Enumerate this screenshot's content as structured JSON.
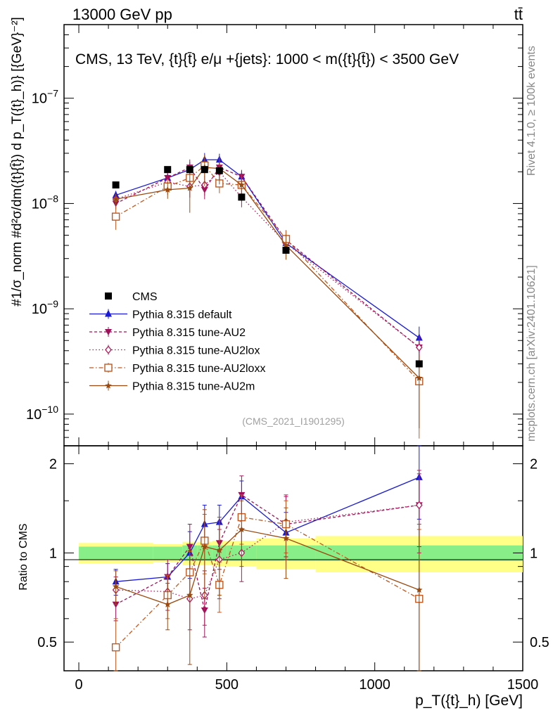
{
  "header": {
    "left": "13000 GeV pp",
    "right": "tt̄"
  },
  "side_labels": {
    "rivet": "Rivet 4.1.0, ≥ 100k events",
    "mcplots": "mcplots.cern.ch [arXiv:2401.10621]"
  },
  "chart_data": {
    "type": "scatter",
    "title": "CMS, 13 TeV, {t}{t̄} e/μ +{jets}: 1000 < m({t}{t̄}) < 3500 GeV",
    "analysis_tag": "(CMS_2021_I1901295)",
    "xlabel": "p_T({t}_h) [GeV]",
    "ylabel": "#1/σ_norm #d²σ/dm({t}{t̄}) d p_T({t}_h)} [{GeV}⁻²]",
    "ratio_ylabel": "Ratio to CMS",
    "xlim": [
      -50,
      1500
    ],
    "ylim": [
      5e-11,
      5e-07
    ],
    "yscale": "log",
    "ratio_ylim": [
      0.4,
      2.3
    ],
    "x_ticks": [
      0,
      500,
      1000,
      1500
    ],
    "y_ticks": [
      {
        "value": 1e-10,
        "mantissa": "10",
        "exp": "−10"
      },
      {
        "value": 1e-09,
        "mantissa": "10",
        "exp": "−9"
      },
      {
        "value": 1e-08,
        "mantissa": "10",
        "exp": "−8"
      },
      {
        "value": 1e-07,
        "mantissa": "10",
        "exp": "−7"
      }
    ],
    "ratio_ticks": [
      {
        "value": 0.5,
        "label": "0.5"
      },
      {
        "value": 1,
        "label": "1"
      },
      {
        "value": 2,
        "label": "2"
      }
    ],
    "bins": [
      0,
      250,
      350,
      400,
      450,
      500,
      600,
      800,
      1500
    ],
    "x": [
      125,
      300,
      375,
      425,
      475,
      550,
      700,
      1150
    ],
    "data": {
      "name": "CMS",
      "values": [
        1.5e-08,
        2.1e-08,
        2.1e-08,
        2.1e-08,
        2.05e-08,
        1.15e-08,
        3.6e-09,
        3e-10
      ],
      "ratio_band_inner": [
        0.05,
        0.05,
        0.06,
        0.06,
        0.06,
        0.06,
        0.06,
        0.06
      ],
      "ratio_band_outer": [
        0.08,
        0.07,
        0.09,
        0.09,
        0.1,
        0.1,
        0.12,
        0.14
      ]
    },
    "series": [
      {
        "name": "Pythia 8.315 default",
        "color": "#1a1ad6",
        "marker": "triangle-up",
        "dash": "",
        "values": [
          1.2e-08,
          1.75e-08,
          2.1e-08,
          2.6e-08,
          2.6e-08,
          1.8e-08,
          4.2e-09,
          5.3e-10
        ],
        "ratio": [
          0.8,
          0.83,
          1.0,
          1.25,
          1.27,
          1.55,
          1.17,
          1.8
        ],
        "ratio_err": [
          0.08,
          0.09,
          0.18,
          0.2,
          0.18,
          0.2,
          0.2,
          0.5
        ]
      },
      {
        "name": "Pythia 8.315 tune-AU2",
        "color": "#a0105a",
        "marker": "triangle-down",
        "dash": "4,3",
        "values": [
          1e-08,
          1.75e-08,
          2.2e-08,
          1.35e-08,
          2.2e-08,
          1.8e-08,
          4.5e-09,
          4.3e-10
        ],
        "ratio": [
          0.67,
          0.83,
          1.05,
          0.64,
          1.08,
          1.57,
          1.25,
          1.45
        ],
        "ratio_err": [
          0.08,
          0.12,
          0.2,
          0.12,
          0.2,
          0.25,
          0.3,
          0.4
        ]
      },
      {
        "name": "Pythia 8.315 tune-AU2lox",
        "color": "#b0185a",
        "marker": "diamond-open",
        "dash": "1.5,3",
        "values": [
          1.1e-08,
          1.6e-08,
          1.45e-08,
          1.5e-08,
          2e-08,
          1.15e-08,
          4.2e-09,
          4.3e-10
        ],
        "ratio": [
          0.75,
          0.74,
          0.7,
          0.72,
          0.95,
          1.0,
          1.27,
          1.45
        ],
        "ratio_err": [
          0.08,
          0.1,
          0.15,
          0.15,
          0.25,
          0.2,
          0.3,
          0.45
        ]
      },
      {
        "name": "Pythia 8.315 tune-AU2loxx",
        "color": "#c05820",
        "marker": "square-open",
        "dash": "6,3,1.5,3",
        "values": [
          7.5e-09,
          1.45e-08,
          1.75e-08,
          2.3e-08,
          1.55e-08,
          1.5e-08,
          4.6e-09,
          2.05e-10
        ],
        "ratio": [
          0.48,
          0.72,
          0.86,
          1.1,
          0.78,
          1.32,
          1.25,
          0.7
        ],
        "ratio_err": [
          0.12,
          0.12,
          0.15,
          0.25,
          0.15,
          0.25,
          0.25,
          0.5
        ]
      },
      {
        "name": "Pythia 8.315 tune-AU2m",
        "color": "#9a4a10",
        "marker": "star",
        "dash": "",
        "values": [
          1.1e-08,
          1.35e-08,
          1.4e-08,
          2.2e-08,
          2.15e-08,
          1.5e-08,
          4e-09,
          2.2e-10
        ],
        "ratio": [
          0.77,
          0.67,
          0.72,
          1.05,
          1.02,
          1.2,
          1.12,
          0.75
        ],
        "ratio_err": [
          0.1,
          0.12,
          0.3,
          0.35,
          0.3,
          0.3,
          0.3,
          0.5
        ]
      }
    ],
    "legend_position": "lower-left"
  }
}
